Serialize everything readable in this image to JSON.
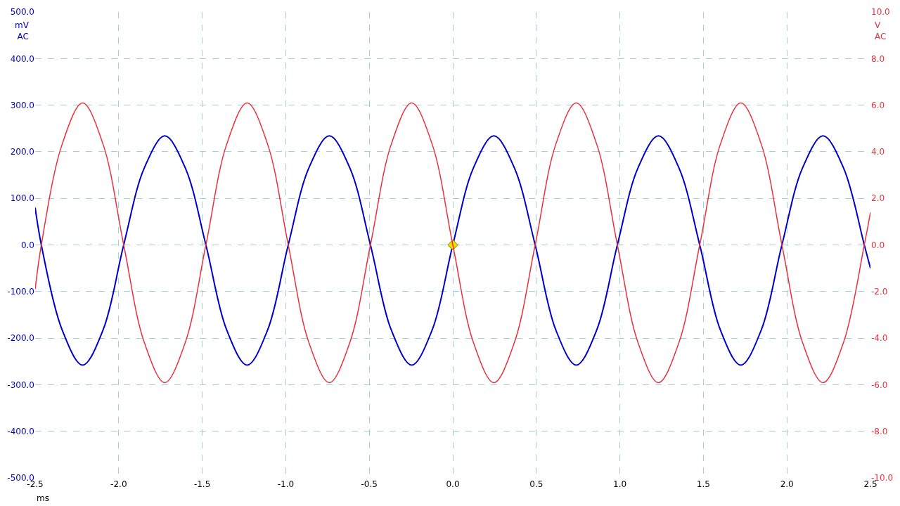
{
  "chart_data": {
    "type": "line",
    "xlabel": "ms",
    "ylabel": "mV\nAC",
    "y2label": "V\nAC",
    "xlim": [
      -2.5,
      2.5
    ],
    "xticks": [
      {
        "value": -2.5,
        "label": "-2.5"
      },
      {
        "value": -2,
        "label": "-2.0"
      },
      {
        "value": -1.5,
        "label": "-1.5"
      },
      {
        "value": -1,
        "label": "-1.0"
      },
      {
        "value": -0.5,
        "label": "-0.5"
      },
      {
        "value": 0,
        "label": "0.0"
      },
      {
        "value": 0.5,
        "label": "0.5"
      },
      {
        "value": 1,
        "label": "1.0"
      },
      {
        "value": 1.5,
        "label": "1.5"
      },
      {
        "value": 2,
        "label": "2.0"
      },
      {
        "value": 2.5,
        "label": "2.5"
      }
    ],
    "ylim": [
      -500,
      500
    ],
    "yticks": [
      {
        "value": -500,
        "label": "-500.0"
      },
      {
        "value": -400,
        "label": "-400.0"
      },
      {
        "value": -300,
        "label": "-300.0"
      },
      {
        "value": -200,
        "label": "-200.0"
      },
      {
        "value": -100,
        "label": "-100.0"
      },
      {
        "value": 0,
        "label": "0.0"
      },
      {
        "value": 100,
        "label": "100.0"
      },
      {
        "value": 200,
        "label": "200.0"
      },
      {
        "value": 300,
        "label": "300.0"
      },
      {
        "value": 400,
        "label": "400.0"
      },
      {
        "value": 500,
        "label": "500.0"
      }
    ],
    "y2lim": [
      -10,
      10
    ],
    "y2ticks": [
      {
        "value": -10,
        "label": "-10.0"
      },
      {
        "value": -8,
        "label": "-8.0"
      },
      {
        "value": -6,
        "label": "-6.0"
      },
      {
        "value": -4,
        "label": "-4.0"
      },
      {
        "value": -2,
        "label": "-2.0"
      },
      {
        "value": 0,
        "label": "0.0"
      },
      {
        "value": 2,
        "label": "2.0"
      },
      {
        "value": 4,
        "label": "4.0"
      },
      {
        "value": 6,
        "label": "6.0"
      },
      {
        "value": 8,
        "label": "8.0"
      },
      {
        "value": 10,
        "label": "10.0"
      }
    ],
    "grid": true,
    "line_style": "solid",
    "series": [
      {
        "color": "#e8323c",
        "axis": "y2",
        "x": [
          -2.5,
          -2.463,
          -2.339,
          -2.216,
          -2.093,
          -1.97,
          -1.847,
          -1.724,
          -1.601,
          -1.478,
          -1.354,
          -1.231,
          -1.108,
          -0.985,
          -0.862,
          -0.739,
          -0.616,
          -0.493,
          -0.369,
          -0.246,
          -0.123,
          0,
          0.123,
          0.246,
          0.369,
          0.493,
          0.616,
          0.739,
          0.862,
          0.985,
          1.108,
          1.231,
          1.354,
          1.478,
          1.601,
          1.724,
          1.847,
          1.97,
          2.093,
          2.216,
          2.339,
          2.463,
          2.5
        ],
        "values": [
          -1.9,
          0,
          4.31,
          6.09,
          4.31,
          0,
          -4.18,
          -5.91,
          -4.18,
          0,
          4.31,
          6.09,
          4.31,
          0,
          -4.18,
          -5.91,
          -4.18,
          0,
          4.31,
          6.09,
          4.31,
          0,
          -4.18,
          -5.91,
          -4.18,
          0,
          4.31,
          6.09,
          4.31,
          0,
          -4.18,
          -5.91,
          -4.18,
          0,
          4.31,
          6.09,
          4.31,
          0,
          -4.18,
          -5.91,
          -4.18,
          0,
          1.4
        ]
      },
      {
        "color": "#0000cc",
        "x": [
          -2.5,
          -2.463,
          -2.339,
          -2.216,
          -2.093,
          -1.97,
          -1.847,
          -1.724,
          -1.601,
          -1.478,
          -1.354,
          -1.231,
          -1.108,
          -0.985,
          -0.862,
          -0.739,
          -0.616,
          -0.493,
          -0.369,
          -0.246,
          -0.123,
          0,
          0.123,
          0.246,
          0.369,
          0.493,
          0.616,
          0.739,
          0.862,
          0.985,
          1.108,
          1.231,
          1.354,
          1.478,
          1.601,
          1.724,
          1.847,
          1.97,
          2.093,
          2.216,
          2.339,
          2.463,
          2.5
        ],
        "values": [
          80,
          0,
          -182,
          -258,
          -182,
          0,
          165,
          234,
          165,
          0,
          -182,
          -258,
          -182,
          0,
          165,
          234,
          165,
          0,
          -182,
          -258,
          -182,
          0,
          165,
          234,
          165,
          0,
          -182,
          -258,
          -182,
          0,
          165,
          234,
          165,
          0,
          -182,
          -258,
          -182,
          0,
          165,
          234,
          165,
          0,
          -50
        ]
      },
      {
        "type": "scatter",
        "marker": "diamond",
        "color": "#f0e000",
        "x": [
          0
        ],
        "values": [
          0
        ]
      }
    ]
  }
}
